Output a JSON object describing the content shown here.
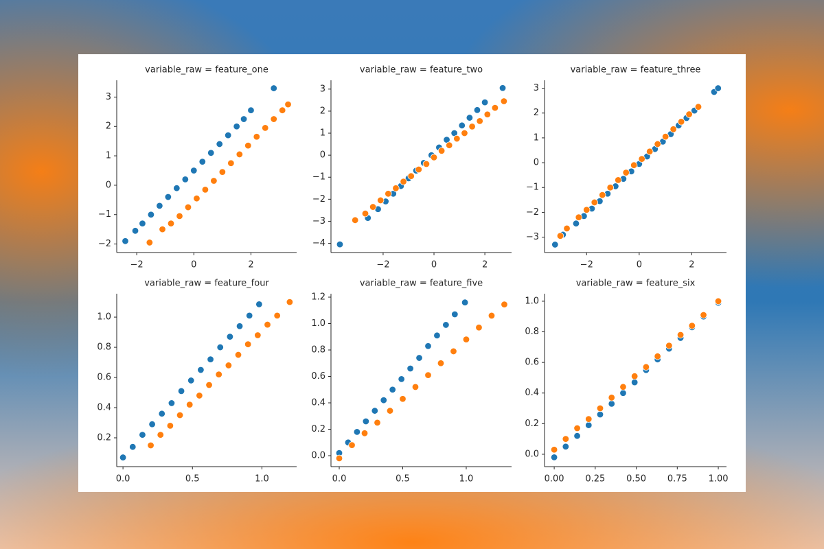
{
  "chart_data": [
    {
      "type": "scatter",
      "title": "variable_raw = feature_one",
      "xlim": [
        -2.7,
        3.6
      ],
      "ylim": [
        -2.29,
        3.57
      ],
      "xticks": [
        {
          "value": -2,
          "label": "−2"
        },
        0,
        2
      ],
      "yticks": [
        {
          "value": -2,
          "label": "−2"
        },
        {
          "value": -1,
          "label": "−1"
        },
        0,
        1,
        2,
        3
      ],
      "series": [
        {
          "color": "#1f77b4",
          "x": [
            -2.4,
            -2.05,
            -1.8,
            -1.5,
            -1.2,
            -0.9,
            -0.6,
            -0.3,
            0,
            0.3,
            0.6,
            0.9,
            1.2,
            1.5,
            1.75,
            2.0,
            2.8
          ],
          "values": [
            -1.9,
            -1.55,
            -1.3,
            -1.0,
            -0.7,
            -0.4,
            -0.1,
            0.2,
            0.5,
            0.8,
            1.1,
            1.4,
            1.7,
            2.0,
            2.25,
            2.55,
            3.3
          ]
        },
        {
          "color": "#ff7f0e",
          "x": [
            -1.55,
            -1.1,
            -0.8,
            -0.5,
            -0.2,
            0.1,
            0.4,
            0.7,
            1.0,
            1.3,
            1.6,
            1.9,
            2.2,
            2.5,
            2.8,
            3.1,
            3.3
          ],
          "values": [
            -1.95,
            -1.5,
            -1.3,
            -1.05,
            -0.75,
            -0.45,
            -0.15,
            0.15,
            0.45,
            0.75,
            1.05,
            1.35,
            1.65,
            1.95,
            2.25,
            2.55,
            2.75
          ]
        }
      ]
    },
    {
      "type": "scatter",
      "title": "variable_raw = feature_two",
      "xlim": [
        -4.05,
        3.05
      ],
      "ylim": [
        -4.42,
        3.4
      ],
      "xticks": [
        {
          "value": -2,
          "label": "−2"
        },
        0,
        2
      ],
      "yticks": [
        {
          "value": -4,
          "label": "−4"
        },
        {
          "value": -3,
          "label": "−3"
        },
        {
          "value": -2,
          "label": "−2"
        },
        {
          "value": -1,
          "label": "−1"
        },
        0,
        1,
        2,
        3
      ],
      "series": [
        {
          "color": "#1f77b4",
          "x": [
            -3.7,
            -2.6,
            -2.2,
            -1.9,
            -1.6,
            -1.3,
            -1.0,
            -0.7,
            -0.4,
            -0.1,
            0.2,
            0.5,
            0.8,
            1.1,
            1.4,
            1.7,
            2.0,
            2.7
          ],
          "values": [
            -4.05,
            -2.85,
            -2.45,
            -2.1,
            -1.75,
            -1.4,
            -1.05,
            -0.7,
            -0.35,
            0,
            0.35,
            0.7,
            1.0,
            1.35,
            1.7,
            2.05,
            2.4,
            3.05
          ]
        },
        {
          "color": "#ff7f0e",
          "x": [
            -3.1,
            -2.7,
            -2.4,
            -2.1,
            -1.8,
            -1.5,
            -1.2,
            -0.9,
            -0.6,
            -0.3,
            0,
            0.3,
            0.6,
            0.9,
            1.2,
            1.5,
            1.8,
            2.1,
            2.4,
            2.75
          ],
          "values": [
            -2.95,
            -2.65,
            -2.35,
            -2.05,
            -1.75,
            -1.5,
            -1.2,
            -0.95,
            -0.65,
            -0.4,
            -0.1,
            0.2,
            0.45,
            0.75,
            1.0,
            1.3,
            1.55,
            1.85,
            2.15,
            2.45
          ]
        }
      ]
    },
    {
      "type": "scatter",
      "title": "variable_raw = feature_three",
      "xlim": [
        -3.6,
        3.32
      ],
      "ylim": [
        -3.62,
        3.32
      ],
      "xticks": [
        {
          "value": -2,
          "label": "−2"
        },
        0,
        2
      ],
      "yticks": [
        {
          "value": -3,
          "label": "−3"
        },
        {
          "value": -2,
          "label": "−2"
        },
        {
          "value": -1,
          "label": "−1"
        },
        0,
        1,
        2,
        3
      ],
      "series": [
        {
          "color": "#1f77b4",
          "x": [
            -3.2,
            -2.9,
            -2.4,
            -2.1,
            -1.8,
            -1.5,
            -1.2,
            -0.9,
            -0.6,
            -0.3,
            0,
            0.3,
            0.6,
            0.9,
            1.2,
            1.5,
            1.8,
            2.1,
            2.25,
            2.85,
            3.0
          ],
          "values": [
            -3.3,
            -2.9,
            -2.45,
            -2.15,
            -1.85,
            -1.55,
            -1.25,
            -0.95,
            -0.65,
            -0.35,
            -0.05,
            0.25,
            0.55,
            0.85,
            1.15,
            1.5,
            1.8,
            2.1,
            2.25,
            2.85,
            3.0
          ]
        },
        {
          "color": "#ff7f0e",
          "x": [
            -3.0,
            -2.75,
            -2.3,
            -2.0,
            -1.7,
            -1.4,
            -1.1,
            -0.8,
            -0.5,
            -0.2,
            0.1,
            0.4,
            0.7,
            1.0,
            1.3,
            1.6,
            1.9,
            2.25
          ],
          "values": [
            -2.95,
            -2.65,
            -2.2,
            -1.9,
            -1.6,
            -1.3,
            -1.0,
            -0.7,
            -0.4,
            -0.1,
            0.15,
            0.45,
            0.75,
            1.05,
            1.35,
            1.65,
            1.95,
            2.25
          ]
        }
      ]
    },
    {
      "type": "scatter",
      "title": "variable_raw = feature_four",
      "xlim": [
        -0.045,
        1.25
      ],
      "ylim": [
        0.009,
        1.155
      ],
      "xticks": [
        {
          "value": 0,
          "label": "0.0"
        },
        0.5,
        {
          "value": 1,
          "label": "1.0"
        }
      ],
      "yticks": [
        0.2,
        0.4,
        0.6,
        0.8,
        {
          "value": 1,
          "label": "1.0"
        }
      ],
      "series": [
        {
          "color": "#1f77b4",
          "x": [
            0,
            0.07,
            0.14,
            0.21,
            0.28,
            0.35,
            0.42,
            0.49,
            0.56,
            0.63,
            0.7,
            0.77,
            0.84,
            0.91,
            0.98
          ],
          "values": [
            0.07,
            0.14,
            0.22,
            0.29,
            0.36,
            0.43,
            0.51,
            0.58,
            0.65,
            0.72,
            0.8,
            0.87,
            0.94,
            1.01,
            1.085
          ]
        },
        {
          "color": "#ff7f0e",
          "x": [
            0.2,
            0.27,
            0.34,
            0.41,
            0.48,
            0.55,
            0.62,
            0.69,
            0.76,
            0.83,
            0.9,
            0.97,
            1.04,
            1.11,
            1.2
          ],
          "values": [
            0.15,
            0.22,
            0.28,
            0.35,
            0.42,
            0.48,
            0.55,
            0.62,
            0.68,
            0.75,
            0.82,
            0.88,
            0.95,
            1.01,
            1.1
          ]
        }
      ]
    },
    {
      "type": "scatter",
      "title": "variable_raw = feature_five",
      "xlim": [
        -0.065,
        1.357
      ],
      "ylim": [
        -0.083,
        1.226
      ],
      "xticks": [
        {
          "value": 0,
          "label": "0.0"
        },
        0.5,
        {
          "value": 1,
          "label": "1.0"
        }
      ],
      "yticks": [
        {
          "value": 0,
          "label": "0.0"
        },
        0.2,
        0.4,
        0.6,
        0.8,
        {
          "value": 1,
          "label": "1.0"
        },
        1.2
      ],
      "series": [
        {
          "color": "#1f77b4",
          "x": [
            0,
            0.07,
            0.14,
            0.21,
            0.28,
            0.35,
            0.42,
            0.49,
            0.56,
            0.63,
            0.7,
            0.77,
            0.84,
            0.91,
            0.99
          ],
          "values": [
            0.02,
            0.1,
            0.18,
            0.26,
            0.34,
            0.42,
            0.5,
            0.58,
            0.66,
            0.74,
            0.83,
            0.91,
            0.99,
            1.07,
            1.16
          ]
        },
        {
          "color": "#ff7f0e",
          "x": [
            0,
            0.1,
            0.2,
            0.3,
            0.4,
            0.5,
            0.6,
            0.7,
            0.8,
            0.9,
            1.0,
            1.1,
            1.2,
            1.3
          ],
          "values": [
            -0.02,
            0.08,
            0.17,
            0.25,
            0.34,
            0.43,
            0.52,
            0.61,
            0.7,
            0.79,
            0.88,
            0.97,
            1.06,
            1.145
          ]
        }
      ]
    },
    {
      "type": "scatter",
      "title": "variable_raw = feature_six",
      "xlim": [
        -0.059,
        1.05
      ],
      "ylim": [
        -0.081,
        1.049
      ],
      "xticks": [
        {
          "value": 0,
          "label": "0.00"
        },
        0.25,
        {
          "value": 0.5,
          "label": "0.50"
        },
        0.75,
        {
          "value": 1,
          "label": "1.00"
        }
      ],
      "yticks": [
        {
          "value": 0,
          "label": "0.0"
        },
        0.2,
        0.4,
        0.6,
        0.8,
        {
          "value": 1,
          "label": "1.0"
        }
      ],
      "series": [
        {
          "color": "#1f77b4",
          "x": [
            0,
            0.07,
            0.14,
            0.21,
            0.28,
            0.35,
            0.42,
            0.49,
            0.56,
            0.63,
            0.7,
            0.77,
            0.84,
            0.91,
            1.0
          ],
          "values": [
            -0.02,
            0.05,
            0.12,
            0.19,
            0.26,
            0.33,
            0.4,
            0.47,
            0.55,
            0.62,
            0.69,
            0.76,
            0.83,
            0.9,
            0.99
          ]
        },
        {
          "color": "#ff7f0e",
          "x": [
            0,
            0.07,
            0.14,
            0.21,
            0.28,
            0.35,
            0.42,
            0.49,
            0.56,
            0.63,
            0.7,
            0.77,
            0.84,
            0.91,
            1.0
          ],
          "values": [
            0.03,
            0.1,
            0.17,
            0.23,
            0.3,
            0.37,
            0.44,
            0.51,
            0.57,
            0.64,
            0.71,
            0.78,
            0.84,
            0.91,
            1.0
          ]
        }
      ]
    }
  ]
}
